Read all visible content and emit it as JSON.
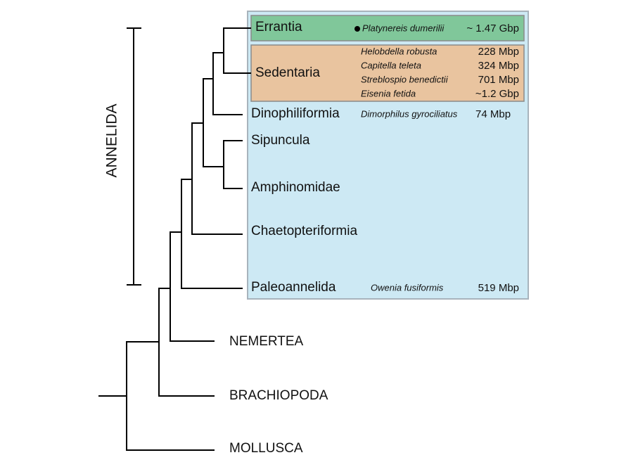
{
  "clade_label": "ANNELIDA",
  "groups": [
    {
      "name": "Errantia",
      "species": [
        {
          "name": "Platynereis dumerilii",
          "genome": "~ 1.47 Gbp"
        }
      ]
    },
    {
      "name": "Sedentaria",
      "species": [
        {
          "name": "Helobdella robusta",
          "genome": "228 Mbp"
        },
        {
          "name": "Capitella teleta",
          "genome": "324 Mbp"
        },
        {
          "name": "Streblospio benedictii",
          "genome": "701 Mbp"
        },
        {
          "name": "Eisenia fetida",
          "genome": "~1.2 Gbp"
        }
      ]
    },
    {
      "name": "Dinophiliformia",
      "species": [
        {
          "name": "Dimorphilus gyrociliatus",
          "genome": "74 Mbp"
        }
      ]
    },
    {
      "name": "Sipuncula",
      "species": []
    },
    {
      "name": "Amphinomidae",
      "species": []
    },
    {
      "name": "Chaetopteriformia",
      "species": []
    },
    {
      "name": "Paleoannelida",
      "species": [
        {
          "name": "Owenia fusiformis",
          "genome": "519 Mbp"
        }
      ]
    }
  ],
  "outgroups": [
    "NEMERTEA",
    "BRACHIOPODA",
    "MOLLUSCA"
  ]
}
